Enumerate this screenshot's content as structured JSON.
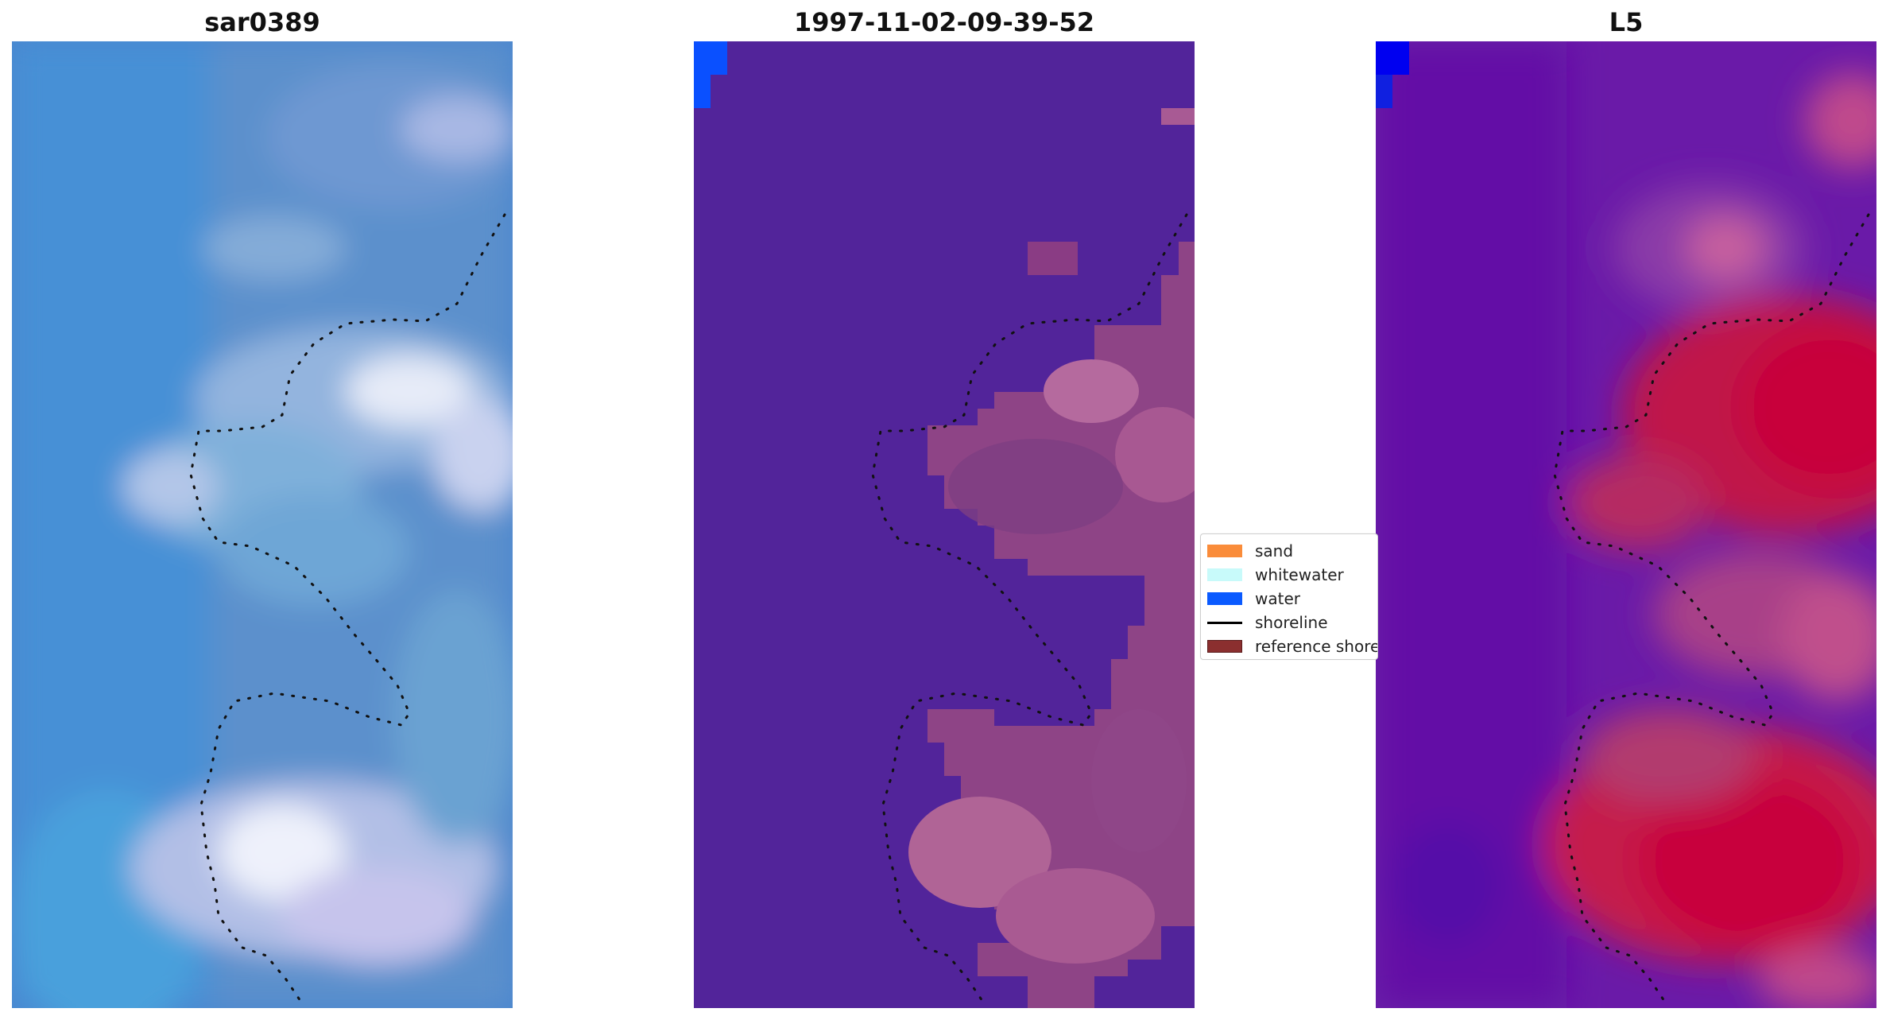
{
  "panels": [
    {
      "title": "sar0389"
    },
    {
      "title": "1997-11-02-09-39-52"
    },
    {
      "title": "L5"
    }
  ],
  "legend": {
    "items": [
      {
        "label": "sand",
        "color": "#fa8c3a",
        "kind": "patch"
      },
      {
        "label": "whitewater",
        "color": "#c8fafa",
        "kind": "patch"
      },
      {
        "label": "water",
        "color": "#0a5aff",
        "kind": "patch"
      },
      {
        "label": "shoreline",
        "color": "#000000",
        "kind": "line"
      },
      {
        "label": "reference shoreline",
        "color": "#8b2f2f",
        "kind": "patch"
      }
    ]
  },
  "colors": {
    "background": "#ffffff",
    "water_class": "#52249a",
    "water_blue": "#0a50ff",
    "sand_overlay": "#b0588e"
  }
}
